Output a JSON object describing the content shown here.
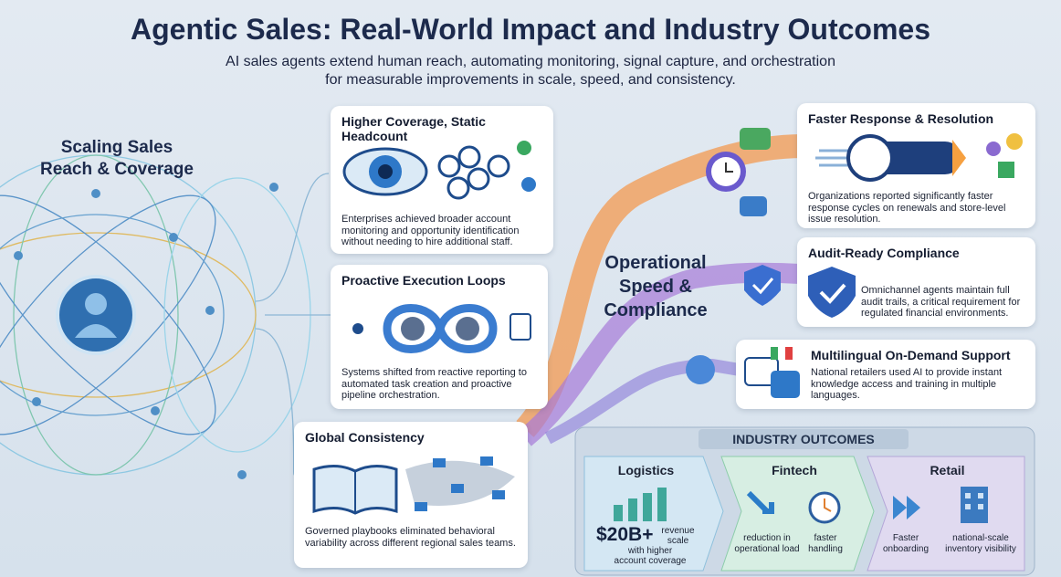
{
  "header": {
    "title": "Agentic Sales: Real-World Impact and Industry Outcomes",
    "subtitle": [
      "AI sales agents extend human reach, automating monitoring, signal capture, and orchestration",
      "for measurable improvements in scale, speed, and consistency."
    ]
  },
  "left_label": [
    "Scaling Sales",
    "Reach & Coverage"
  ],
  "left_cards": [
    {
      "title": "Higher Coverage, Static Headcount",
      "body": "Enterprises achieved broader account monitoring and opportunity identification without needing to hire additional staff."
    },
    {
      "title": "Proactive Execution Loops",
      "body": "Systems shifted from reactive reporting to automated task creation and proactive pipeline orchestration."
    },
    {
      "title": "Global Consistency",
      "body": "Governed playbooks eliminated behavioral variability across different regional sales teams."
    }
  ],
  "middle_label": [
    "Operational",
    "Speed &",
    "Compliance"
  ],
  "right_cards": [
    {
      "title": "Faster Response & Resolution",
      "body": "Organizations reported significantly faster response cycles on renewals and store-level issue resolution."
    },
    {
      "title": "Audit-Ready Compliance",
      "body": "Omnichannel agents maintain full audit trails, a critical requirement for regulated financial environments."
    },
    {
      "title": "Multilingual On-Demand Support",
      "body": "National retailers used AI to provide instant knowledge access and training in multiple languages."
    }
  ],
  "outcomes": {
    "title": "INDUSTRY OUTCOMES",
    "sectors": [
      {
        "name": "Logistics",
        "figure": "$20B+",
        "figure_note": "revenue scale",
        "caption": "with higher account coverage"
      },
      {
        "name": "Fintech",
        "items": [
          "reduction in operational load",
          "faster handling"
        ]
      },
      {
        "name": "Retail",
        "items": [
          "Faster onboarding",
          "national-scale inventory visibility"
        ]
      }
    ]
  }
}
